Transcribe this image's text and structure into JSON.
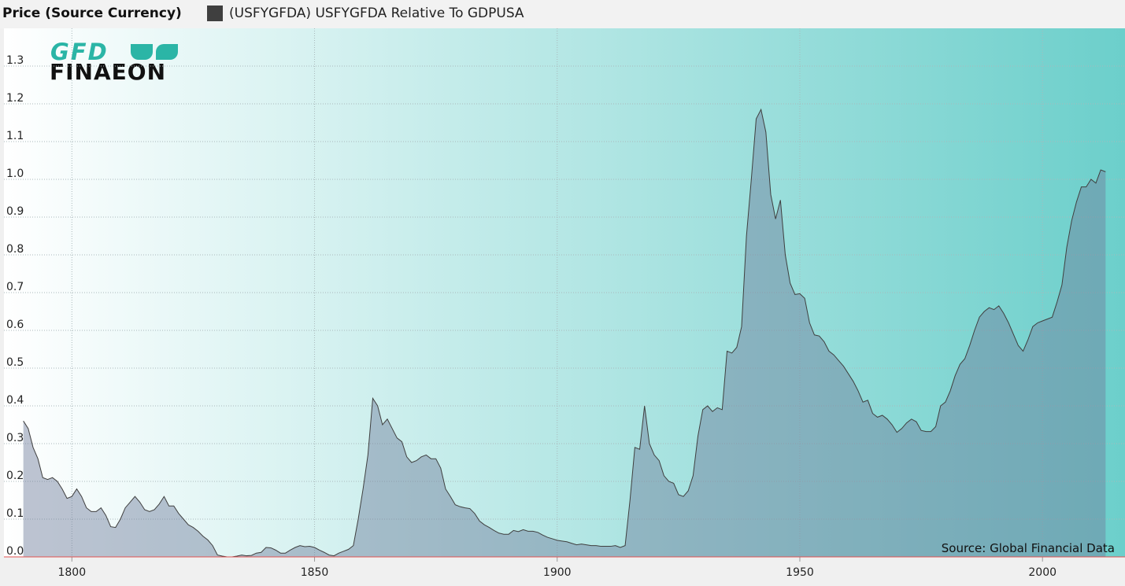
{
  "chart_data": {
    "type": "area",
    "y_label": "Price (Source Currency)",
    "source": "Source: Global Financial Data",
    "logo": {
      "top": "GFD",
      "bottom": "FINAEON"
    },
    "x": [
      1790,
      1791,
      1792,
      1793,
      1794,
      1795,
      1796,
      1797,
      1798,
      1799,
      1800,
      1801,
      1802,
      1803,
      1804,
      1805,
      1806,
      1807,
      1808,
      1809,
      1810,
      1811,
      1812,
      1813,
      1814,
      1815,
      1816,
      1817,
      1818,
      1819,
      1820,
      1821,
      1822,
      1823,
      1824,
      1825,
      1826,
      1827,
      1828,
      1829,
      1830,
      1831,
      1832,
      1833,
      1834,
      1835,
      1836,
      1837,
      1838,
      1839,
      1840,
      1841,
      1842,
      1843,
      1844,
      1845,
      1846,
      1847,
      1848,
      1849,
      1850,
      1851,
      1852,
      1853,
      1854,
      1855,
      1856,
      1857,
      1858,
      1859,
      1860,
      1861,
      1862,
      1863,
      1864,
      1865,
      1866,
      1867,
      1868,
      1869,
      1870,
      1871,
      1872,
      1873,
      1874,
      1875,
      1876,
      1877,
      1878,
      1879,
      1880,
      1881,
      1882,
      1883,
      1884,
      1885,
      1886,
      1887,
      1888,
      1889,
      1890,
      1891,
      1892,
      1893,
      1894,
      1895,
      1896,
      1897,
      1898,
      1899,
      1900,
      1901,
      1902,
      1903,
      1904,
      1905,
      1906,
      1907,
      1908,
      1909,
      1910,
      1911,
      1912,
      1913,
      1914,
      1915,
      1916,
      1917,
      1918,
      1919,
      1920,
      1921,
      1922,
      1923,
      1924,
      1925,
      1926,
      1927,
      1928,
      1929,
      1930,
      1931,
      1932,
      1933,
      1934,
      1935,
      1936,
      1937,
      1938,
      1939,
      1940,
      1941,
      1942,
      1943,
      1944,
      1945,
      1946,
      1947,
      1948,
      1949,
      1950,
      1951,
      1952,
      1953,
      1954,
      1955,
      1956,
      1957,
      1958,
      1959,
      1960,
      1961,
      1962,
      1963,
      1964,
      1965,
      1966,
      1967,
      1968,
      1969,
      1970,
      1971,
      1972,
      1973,
      1974,
      1975,
      1976,
      1977,
      1978,
      1979,
      1980,
      1981,
      1982,
      1983,
      1984,
      1985,
      1986,
      1987,
      1988,
      1989,
      1990,
      1991,
      1992,
      1993,
      1994,
      1995,
      1996,
      1997,
      1998,
      1999,
      2000,
      2001,
      2002,
      2003,
      2004,
      2005,
      2006,
      2007,
      2008,
      2009,
      2010,
      2011,
      2012,
      2013
    ],
    "series": [
      {
        "name": "(USFYGFDA) USFYGFDA Relative To GDPUSA",
        "color": "#3f3f3f",
        "values": [
          0.36,
          0.34,
          0.29,
          0.26,
          0.21,
          0.205,
          0.21,
          0.2,
          0.18,
          0.155,
          0.16,
          0.18,
          0.16,
          0.13,
          0.12,
          0.12,
          0.13,
          0.11,
          0.08,
          0.078,
          0.1,
          0.13,
          0.145,
          0.16,
          0.145,
          0.125,
          0.12,
          0.125,
          0.14,
          0.16,
          0.135,
          0.135,
          0.115,
          0.1,
          0.085,
          0.078,
          0.068,
          0.055,
          0.045,
          0.03,
          0.005,
          0.002,
          0,
          0,
          0.002,
          0.005,
          0.003,
          0.004,
          0.01,
          0.012,
          0.025,
          0.024,
          0.018,
          0.01,
          0.01,
          0.018,
          0.025,
          0.03,
          0.027,
          0.028,
          0.025,
          0.018,
          0.012,
          0.005,
          0.003,
          0.01,
          0.015,
          0.02,
          0.03,
          0.1,
          0.18,
          0.27,
          0.42,
          0.4,
          0.35,
          0.365,
          0.34,
          0.315,
          0.305,
          0.265,
          0.25,
          0.255,
          0.265,
          0.27,
          0.26,
          0.26,
          0.235,
          0.18,
          0.16,
          0.138,
          0.133,
          0.13,
          0.128,
          0.115,
          0.095,
          0.085,
          0.078,
          0.07,
          0.063,
          0.06,
          0.06,
          0.07,
          0.067,
          0.072,
          0.068,
          0.068,
          0.065,
          0.058,
          0.052,
          0.048,
          0.044,
          0.042,
          0.04,
          0.036,
          0.032,
          0.034,
          0.032,
          0.03,
          0.03,
          0.028,
          0.028,
          0.028,
          0.03,
          0.025,
          0.03,
          0.15,
          0.29,
          0.285,
          0.4,
          0.3,
          0.27,
          0.255,
          0.215,
          0.2,
          0.195,
          0.165,
          0.16,
          0.175,
          0.215,
          0.32,
          0.39,
          0.4,
          0.385,
          0.395,
          0.39,
          0.545,
          0.54,
          0.555,
          0.61,
          0.85,
          1.0,
          1.16,
          1.185,
          1.125,
          0.96,
          0.895,
          0.945,
          0.8,
          0.725,
          0.695,
          0.697,
          0.685,
          0.62,
          0.588,
          0.585,
          0.57,
          0.545,
          0.535,
          0.52,
          0.505,
          0.485,
          0.465,
          0.44,
          0.41,
          0.415,
          0.38,
          0.37,
          0.375,
          0.365,
          0.35,
          0.33,
          0.34,
          0.355,
          0.365,
          0.358,
          0.335,
          0.332,
          0.332,
          0.345,
          0.4,
          0.41,
          0.44,
          0.48,
          0.51,
          0.525,
          0.56,
          0.6,
          0.635,
          0.65,
          0.66,
          0.655,
          0.665,
          0.645,
          0.62,
          0.59,
          0.56,
          0.545,
          0.575,
          0.61,
          0.62,
          0.625,
          0.63,
          0.635,
          0.675,
          0.72,
          0.82,
          0.89,
          0.94,
          0.98,
          0.98,
          1.0,
          0.99,
          1.025,
          1.02
        ]
      }
    ],
    "xlim": [
      1786,
      2017
    ],
    "xticks": [
      1800,
      1850,
      1900,
      1950,
      2000
    ],
    "ylim": [
      0,
      1.4
    ],
    "yticks": [
      {
        "value": 0,
        "label": "0.0"
      },
      0.1,
      0.2,
      0.3,
      0.4,
      0.5,
      0.6,
      0.7,
      0.8,
      0.9,
      {
        "value": 1,
        "label": "1.0"
      },
      1.1,
      1.2,
      1.3
    ],
    "grid": true,
    "fill": "rgba(110,125,155,0.45)",
    "baseline_color": "#e05050"
  }
}
